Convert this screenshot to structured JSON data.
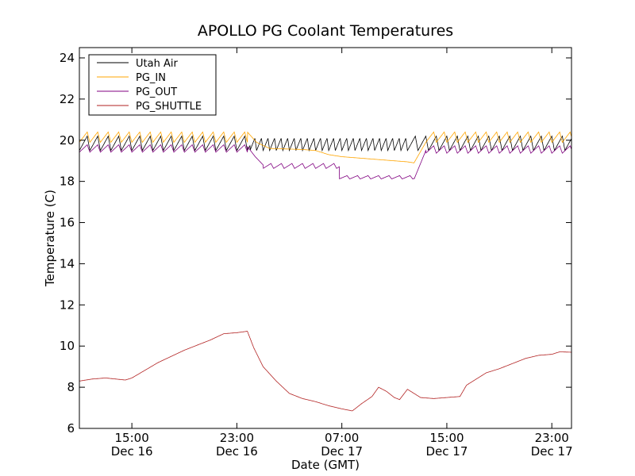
{
  "chart_data": {
    "type": "line",
    "title": "APOLLO PG Coolant Temperatures",
    "xlabel": "Date (GMT)",
    "ylabel": "Temperature (C)",
    "x_unit": "hours since Dec 16 09:00 GMT",
    "xlim": [
      2.0,
      39.5
    ],
    "ylim": [
      6,
      24.5
    ],
    "yticks": [
      6,
      8,
      10,
      12,
      14,
      16,
      18,
      20,
      22,
      24
    ],
    "xticks": [
      {
        "x": 6,
        "time": "15:00",
        "date": "Dec 16"
      },
      {
        "x": 14,
        "time": "23:00",
        "date": "Dec 16"
      },
      {
        "x": 22,
        "time": "07:00",
        "date": "Dec 17"
      },
      {
        "x": 30,
        "time": "15:00",
        "date": "Dec 17"
      },
      {
        "x": 38,
        "time": "23:00",
        "date": "Dec 17"
      }
    ],
    "legend_location": "top-left",
    "series": [
      {
        "name": "Utah Air",
        "color": "#000000",
        "osc_periods": [
          [
            2.0,
            15.0,
            0.8,
            19.85,
            0.35
          ],
          [
            15.0,
            27.0,
            0.5,
            19.8,
            0.3
          ],
          [
            27.0,
            39.5,
            0.8,
            19.85,
            0.35
          ]
        ],
        "points": [
          [
            2.0,
            19.9
          ],
          [
            15.0,
            19.9
          ],
          [
            39.5,
            19.9
          ]
        ]
      },
      {
        "name": "PG_IN",
        "color": "#ffa500",
        "osc_periods": [
          [
            2.0,
            14.8,
            0.8,
            20.15,
            0.25
          ],
          [
            28.4,
            39.5,
            0.8,
            20.15,
            0.25
          ]
        ],
        "points": [
          [
            2.0,
            20.2
          ],
          [
            14.8,
            20.4
          ],
          [
            15.5,
            19.9
          ],
          [
            16.5,
            19.6
          ],
          [
            19.0,
            19.55
          ],
          [
            20.0,
            19.5
          ],
          [
            21.0,
            19.3
          ],
          [
            22.0,
            19.2
          ],
          [
            24.0,
            19.1
          ],
          [
            26.0,
            19.0
          ],
          [
            27.0,
            18.95
          ],
          [
            27.5,
            18.9
          ],
          [
            28.4,
            19.9
          ],
          [
            39.5,
            20.3
          ]
        ]
      },
      {
        "name": "PG_OUT",
        "color": "#800080",
        "osc_periods": [
          [
            2.0,
            14.8,
            0.8,
            19.6,
            0.18
          ],
          [
            16.0,
            21.8,
            0.8,
            18.75,
            0.12
          ],
          [
            21.8,
            27.5,
            0.8,
            18.2,
            0.08
          ],
          [
            28.4,
            39.5,
            0.8,
            19.55,
            0.18
          ]
        ],
        "points": [
          [
            2.0,
            19.6
          ],
          [
            14.8,
            19.7
          ],
          [
            15.4,
            19.2
          ],
          [
            16.0,
            18.8
          ],
          [
            21.8,
            18.7
          ],
          [
            22.2,
            18.3
          ],
          [
            27.5,
            18.1
          ],
          [
            28.4,
            19.5
          ],
          [
            39.5,
            19.6
          ]
        ]
      },
      {
        "name": "PG_SHUTTLE",
        "color": "#b22222",
        "points": [
          [
            2.0,
            8.3
          ],
          [
            3.0,
            8.4
          ],
          [
            4.0,
            8.45
          ],
          [
            5.5,
            8.35
          ],
          [
            6.0,
            8.45
          ],
          [
            8.0,
            9.2
          ],
          [
            10.0,
            9.8
          ],
          [
            12.0,
            10.3
          ],
          [
            13.0,
            10.6
          ],
          [
            14.0,
            10.65
          ],
          [
            14.8,
            10.72
          ],
          [
            15.3,
            9.9
          ],
          [
            16.0,
            9.0
          ],
          [
            17.0,
            8.3
          ],
          [
            18.0,
            7.7
          ],
          [
            19.0,
            7.45
          ],
          [
            20.0,
            7.3
          ],
          [
            21.0,
            7.1
          ],
          [
            22.0,
            6.95
          ],
          [
            22.8,
            6.85
          ],
          [
            23.5,
            7.2
          ],
          [
            24.3,
            7.55
          ],
          [
            24.8,
            8.0
          ],
          [
            25.4,
            7.8
          ],
          [
            26.0,
            7.5
          ],
          [
            26.4,
            7.4
          ],
          [
            27.0,
            7.9
          ],
          [
            28.0,
            7.5
          ],
          [
            29.0,
            7.45
          ],
          [
            30.0,
            7.5
          ],
          [
            31.0,
            7.55
          ],
          [
            31.5,
            8.1
          ],
          [
            32.0,
            8.3
          ],
          [
            33.0,
            8.7
          ],
          [
            34.0,
            8.9
          ],
          [
            35.0,
            9.15
          ],
          [
            36.0,
            9.4
          ],
          [
            37.0,
            9.55
          ],
          [
            38.0,
            9.6
          ],
          [
            38.6,
            9.72
          ],
          [
            39.5,
            9.7
          ]
        ]
      }
    ]
  }
}
